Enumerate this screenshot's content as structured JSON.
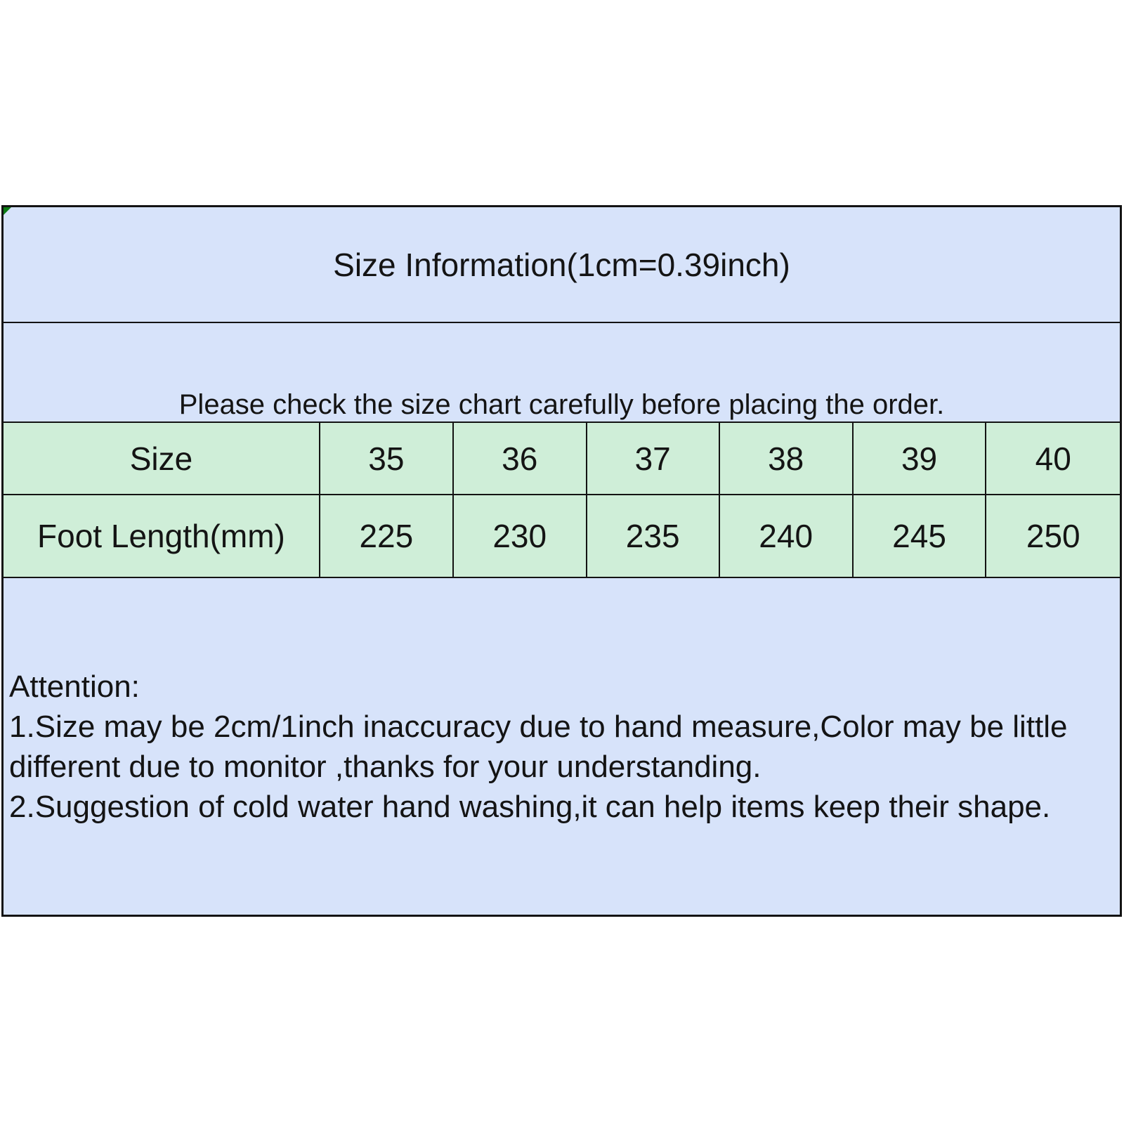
{
  "sheet": {
    "title": "Size Information(1cm=0.39inch)",
    "subtitle": "Please check the size chart carefully before placing the order.",
    "size_label": "Size",
    "sizes": [
      "35",
      "36",
      "37",
      "38",
      "39",
      "40"
    ],
    "foot_label": "Foot Length(mm)",
    "foot_lengths": [
      "225",
      "230",
      "235",
      "240",
      "245",
      "250"
    ],
    "attention_lines": [
      "Attention:",
      "1.Size may be 2cm/1inch inaccuracy due to hand measure,Color may be little",
      "different due to monitor ,thanks for your understanding.",
      "2.Suggestion of cold water hand washing,it can help items keep their shape."
    ],
    "colors": {
      "note_background": "#d7e3fa",
      "table_background": "#cfeed8",
      "border": "#131313",
      "comment_marker_green": "#0c7c15"
    }
  },
  "chart_data": {
    "type": "table",
    "title": "Size Information(1cm=0.39inch)",
    "subtitle": "Please check the size chart carefully before placing the order.",
    "columns": [
      "Size",
      "35",
      "36",
      "37",
      "38",
      "39",
      "40"
    ],
    "rows": [
      [
        "Foot Length(mm)",
        "225",
        "230",
        "235",
        "240",
        "245",
        "250"
      ]
    ],
    "notes": [
      "Attention:",
      "1.Size may be 2cm/1inch inaccuracy due to hand measure,Color may be little different due to monitor ,thanks for your understanding.",
      "2.Suggestion of cold water hand washing,it can help items keep their shape."
    ],
    "layout_hints": {
      "header_fill": "#cfeed8",
      "note_fill": "#d7e3fa",
      "grid": true
    }
  }
}
